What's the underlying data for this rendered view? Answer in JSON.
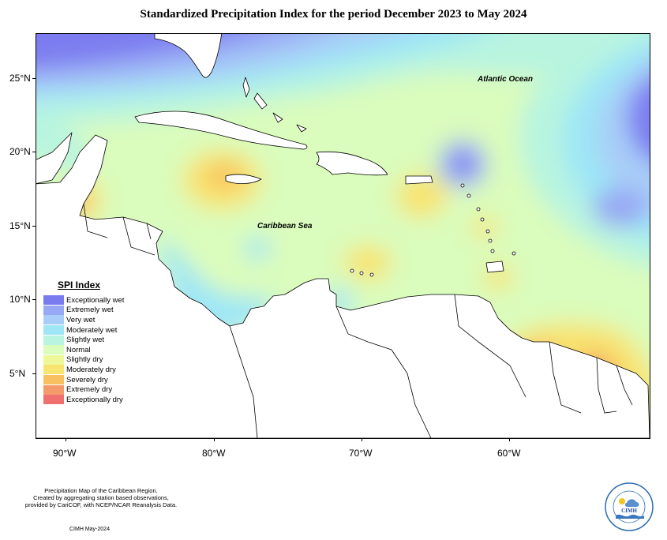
{
  "title": "Standardized Precipitation Index for the period December 2023 to May 2024",
  "map": {
    "ocean_labels": {
      "atlantic": "Atlantic Ocean",
      "caribbean": "Caribbean Sea"
    },
    "lat_labels": [
      "25°N",
      "20°N",
      "15°N",
      "10°N",
      "5°N"
    ],
    "lon_labels": [
      "90°W",
      "80°W",
      "70°W",
      "60°W"
    ]
  },
  "legend": {
    "title": "SPI Index",
    "items": [
      {
        "label": "Exceptionally wet",
        "color": "#7b7bf0"
      },
      {
        "label": "Extremely wet",
        "color": "#98a8f4"
      },
      {
        "label": "Very wet",
        "color": "#a8cdf8"
      },
      {
        "label": "Moderately wet",
        "color": "#9ee6f6"
      },
      {
        "label": "Slightly wet",
        "color": "#b8f4e0"
      },
      {
        "label": "Normal",
        "color": "#dafcbc"
      },
      {
        "label": "Slightly dry",
        "color": "#eef898"
      },
      {
        "label": "Moderately dry",
        "color": "#f8e470"
      },
      {
        "label": "Severely dry",
        "color": "#f8c060"
      },
      {
        "label": "Extremely dry",
        "color": "#f49a6c"
      },
      {
        "label": "Exceptionally dry",
        "color": "#f07070"
      }
    ]
  },
  "footer": {
    "line1": "Precipitation Map of the Caribbean Region.",
    "line2": "Created by aggregating station based observations,",
    "line3": "provided by CariCOF, with NCEP/NCAR Reanalysis Data.",
    "date": "CIMH May-2024"
  },
  "logo": {
    "abbrev": "CIMH"
  }
}
